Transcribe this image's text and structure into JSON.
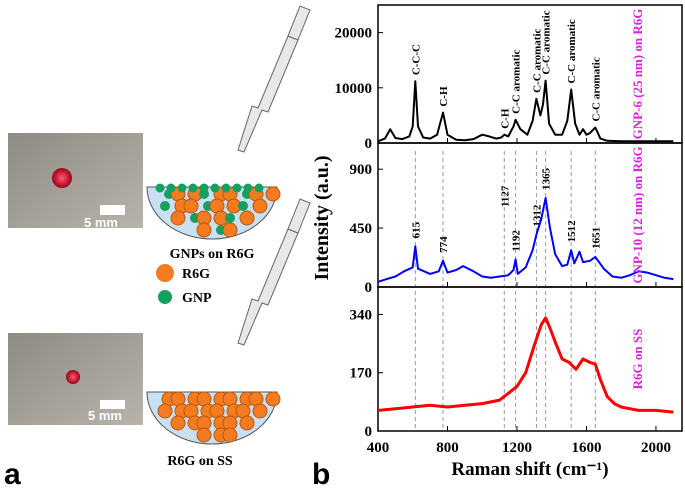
{
  "panel_a": {
    "label": "a",
    "scale_bar_1": "5 mm",
    "scale_bar_2": "5 mm",
    "caption_1": "GNPs on R6G",
    "caption_2": "R6G on SS",
    "legend": [
      "R6G",
      "GNP"
    ]
  },
  "panel_b": {
    "label": "b"
  },
  "chart_data": [
    {
      "type": "line",
      "xlim": [
        400,
        2150
      ],
      "xticks": [
        400,
        800,
        1200,
        1600,
        2000
      ],
      "ylim": [
        0,
        25000
      ],
      "yticks": [
        0,
        10000,
        20000
      ],
      "x": [
        400,
        440,
        470,
        500,
        540,
        580,
        600,
        615,
        630,
        660,
        700,
        740,
        774,
        800,
        850,
        900,
        950,
        1000,
        1040,
        1080,
        1110,
        1127,
        1150,
        1180,
        1192,
        1220,
        1260,
        1290,
        1312,
        1335,
        1350,
        1365,
        1385,
        1420,
        1460,
        1490,
        1512,
        1535,
        1560,
        1580,
        1600,
        1620,
        1651,
        1680,
        1720,
        1800,
        1900,
        2000,
        2100
      ],
      "series": [
        {
          "name": "GNP-6 (25 nm) on R6G",
          "color": "#000000",
          "values": [
            300,
            800,
            2500,
            900,
            700,
            1200,
            3000,
            11200,
            3000,
            1000,
            800,
            1500,
            5500,
            1500,
            600,
            500,
            700,
            1500,
            1200,
            800,
            1000,
            1500,
            1200,
            3000,
            4200,
            2500,
            1500,
            4000,
            8000,
            5000,
            7000,
            11300,
            3500,
            1500,
            1500,
            4000,
            9700,
            3500,
            1500,
            2500,
            1500,
            1800,
            2800,
            800,
            400,
            300,
            300,
            300,
            300
          ]
        }
      ],
      "annotations": [
        {
          "x": 615,
          "text": "C-C-C"
        },
        {
          "x": 774,
          "text": "C-H"
        },
        {
          "x": 1127,
          "text": "C-H"
        },
        {
          "x": 1192,
          "text": "C-C aromatic"
        },
        {
          "x": 1312,
          "text": "C-C aromatic"
        },
        {
          "x": 1365,
          "text": "C-C aromatic"
        },
        {
          "x": 1512,
          "text": "C-C aromatic"
        },
        {
          "x": 1651,
          "text": "C-C aromatic"
        }
      ]
    },
    {
      "type": "line",
      "xlim": [
        400,
        2150
      ],
      "xticks": [
        400,
        800,
        1200,
        1600,
        2000
      ],
      "ylim": [
        0,
        1100
      ],
      "yticks": [
        0,
        450,
        900
      ],
      "y_label": "Intensity (a.u.)",
      "x": [
        400,
        450,
        500,
        550,
        600,
        615,
        630,
        700,
        750,
        774,
        800,
        850,
        890,
        950,
        1000,
        1050,
        1100,
        1150,
        1180,
        1192,
        1205,
        1250,
        1290,
        1312,
        1340,
        1365,
        1390,
        1420,
        1460,
        1490,
        1512,
        1530,
        1560,
        1580,
        1620,
        1651,
        1700,
        1750,
        1800,
        1850,
        1900,
        1950,
        2000,
        2050,
        2100
      ],
      "series": [
        {
          "name": "GNP-10 (12 nm) on R6G",
          "color": "#0000ff",
          "values": [
            40,
            60,
            80,
            120,
            150,
            310,
            140,
            100,
            120,
            200,
            110,
            130,
            160,
            120,
            80,
            70,
            80,
            90,
            130,
            210,
            100,
            150,
            280,
            400,
            520,
            680,
            450,
            250,
            160,
            170,
            280,
            180,
            270,
            190,
            200,
            230,
            140,
            80,
            70,
            90,
            120,
            110,
            90,
            70,
            60
          ]
        }
      ],
      "peak_labels": [
        615,
        774,
        1127,
        1192,
        1312,
        1365,
        1512,
        1651
      ]
    },
    {
      "type": "line",
      "xlim": [
        400,
        2150
      ],
      "xticks": [
        400,
        800,
        1200,
        1600,
        2000
      ],
      "ylim": [
        0,
        420
      ],
      "yticks": [
        0,
        170,
        340
      ],
      "x_label": "Raman shift (cm⁻¹)",
      "x": [
        400,
        500,
        600,
        700,
        800,
        900,
        1000,
        1100,
        1150,
        1200,
        1250,
        1300,
        1340,
        1365,
        1390,
        1420,
        1460,
        1500,
        1540,
        1580,
        1620,
        1651,
        1680,
        1720,
        1760,
        1800,
        1900,
        2000,
        2100
      ],
      "series": [
        {
          "name": "R6G on SS",
          "color": "#ff0000",
          "values": [
            60,
            65,
            70,
            75,
            70,
            75,
            80,
            90,
            110,
            130,
            170,
            250,
            310,
            330,
            300,
            260,
            210,
            200,
            180,
            210,
            200,
            195,
            150,
            100,
            80,
            70,
            60,
            60,
            55
          ]
        }
      ]
    }
  ]
}
